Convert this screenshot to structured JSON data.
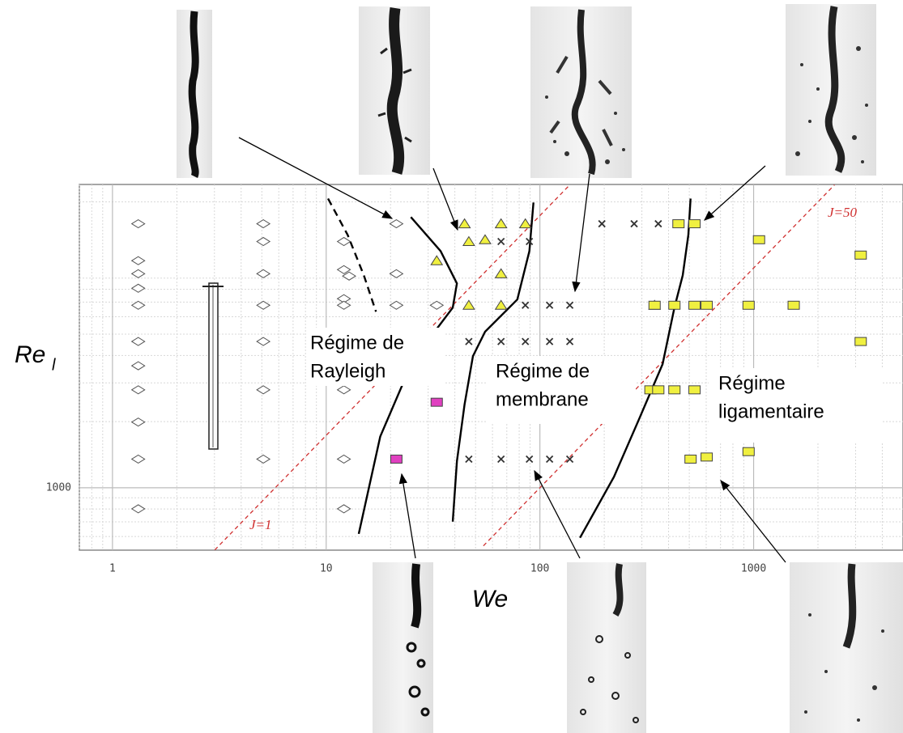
{
  "chart_data": {
    "type": "scatter",
    "xlabel": "We",
    "ylabel": "Re",
    "ylabel_subscript": "l",
    "xscale": "log",
    "yscale": "log",
    "xlim": [
      0.7,
      5000
    ],
    "ylim": [
      520,
      24000
    ],
    "xticks": [
      1,
      10,
      100,
      1000
    ],
    "yticks": [
      1000
    ],
    "grid": true,
    "series": [
      {
        "marker": "diamond",
        "color": "#ffffff",
        "x": [
          1.32,
          1.32,
          1.32,
          1.32,
          1.32,
          1.32,
          1.32,
          1.32,
          1.32,
          1.32,
          1.32,
          5.08,
          5.08,
          5.08,
          5.08,
          5.08,
          5.08,
          5.08,
          12.1,
          12.1,
          12.1,
          12.1,
          12.1,
          12.1,
          12.1,
          12.1,
          12.8,
          21.3,
          21.3,
          21.3,
          32.9
        ],
        "values": [
          15900,
          10800,
          9420,
          8090,
          6770,
          4630,
          3590,
          2790,
          1990,
          1350,
          802,
          15900,
          13200,
          9420,
          6770,
          4630,
          2790,
          1350,
          13200,
          9830,
          7250,
          6770,
          4630,
          2790,
          1350,
          802,
          9190,
          15900,
          9420,
          6770,
          6770
        ]
      },
      {
        "marker": "triangle",
        "color": "#f0f040",
        "x": [
          44.4,
          65.8,
          85.5,
          46.5,
          55.4,
          32.9,
          65.8,
          46.5,
          65.8,
          344
        ],
        "values": [
          15900,
          15900,
          15900,
          13200,
          13450,
          10800,
          9420,
          6770,
          6770,
          6770
        ]
      },
      {
        "marker": "cross",
        "color": "#333333",
        "x": [
          195,
          276,
          358,
          445,
          65.8,
          89.3,
          85.5,
          111,
          138,
          46.5,
          65.8,
          85.5,
          111,
          138,
          46.5,
          65.8,
          89.3,
          111,
          138
        ],
        "values": [
          15900,
          15900,
          15900,
          15900,
          13200,
          13200,
          6770,
          6770,
          6770,
          4630,
          4630,
          4630,
          4630,
          4630,
          1350,
          1350,
          1350,
          1350,
          1350
        ]
      },
      {
        "marker": "square",
        "color": "#f0f040",
        "x": [
          445,
          529,
          1060,
          3170,
          344,
          426,
          529,
          603,
          947,
          1540,
          3170,
          329,
          358,
          426,
          529,
          507,
          603,
          947
        ],
        "values": [
          15900,
          15900,
          13450,
          11450,
          6770,
          6770,
          6770,
          6770,
          6770,
          6770,
          4630,
          2790,
          2790,
          2790,
          2790,
          1350,
          1380,
          1460
        ]
      },
      {
        "marker": "square",
        "color": "#e040c0",
        "x": [
          32.9,
          21.3
        ],
        "values": [
          2450,
          1350
        ]
      }
    ],
    "curves": [
      {
        "style": "solid",
        "color": "#000000",
        "x": [
          24.9,
          34.3,
          40.9,
          39.1,
          30.1,
          23.2,
          17.9,
          14.2
        ],
        "values": [
          17050,
          11940,
          8510,
          6600,
          4710,
          3080,
          1710,
          617
        ]
      },
      {
        "style": "solid",
        "color": "#000000",
        "x": [
          93.3,
          89.3,
          78.4,
          55.4,
          48.6,
          44.4,
          40.9,
          39.1
        ],
        "values": [
          19860,
          11940,
          7190,
          5130,
          3970,
          2390,
          1320,
          701
        ]
      },
      {
        "style": "solid",
        "color": "#000000",
        "x": [
          507,
          495,
          466,
          426,
          375,
          289,
          222,
          154
        ],
        "values": [
          20700,
          14150,
          9270,
          6600,
          3650,
          2020,
          1120,
          592
        ]
      },
      {
        "style": "dashed",
        "color": "#000000",
        "x": [
          10.2,
          12.6,
          15.0,
          17.1
        ],
        "values": [
          20700,
          14150,
          9270,
          6330
        ]
      }
    ],
    "j_lines": [
      {
        "label": "J=1",
        "color": "#d03030",
        "x": [
          3.01,
          138
        ],
        "values": [
          521,
          23900
        ]
      },
      {
        "label": "J=50",
        "color": "#d03030",
        "x": [
          54.4,
          2390
        ],
        "values": [
          544,
          23900
        ]
      }
    ],
    "annotations": [
      {
        "lines": [
          "Régime de",
          "Rayleigh"
        ]
      },
      {
        "lines": [
          "Régime de",
          "membrane"
        ]
      },
      {
        "lines": [
          "Régime",
          "ligamentaire"
        ]
      }
    ]
  }
}
